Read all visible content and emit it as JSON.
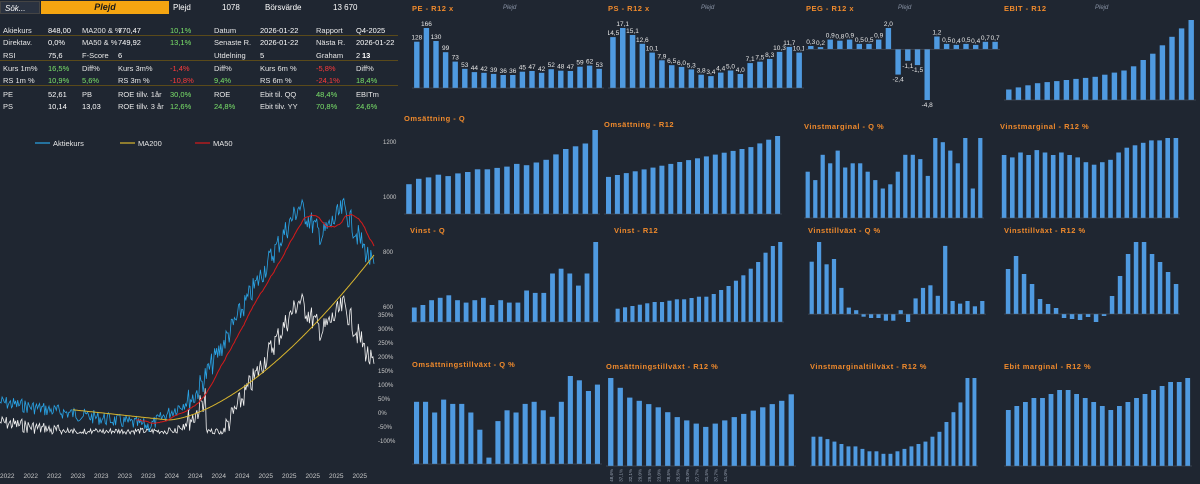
{
  "topbar": {
    "search": "Sök...",
    "company": "Plejd",
    "company2": "Plejd",
    "num1": "1078",
    "bv_label": "Börsvärde",
    "bv_value": "13 670"
  },
  "kpi": {
    "rows": [
      [
        {
          "t": "Akiekurs",
          "c": "lbl"
        },
        {
          "t": "848,00",
          "c": "val"
        },
        {
          "t": "MA200 & %",
          "c": "lbl"
        },
        {
          "t": "770,47",
          "c": "val"
        },
        {
          "t": "10,1%",
          "c": "pos"
        },
        {
          "t": "Datum",
          "c": "lbl"
        },
        {
          "t": "2026-01-22",
          "c": "val"
        },
        {
          "t": "Rapport",
          "c": "lbl"
        },
        {
          "t": "Q4-2025",
          "c": "val"
        }
      ],
      [
        {
          "t": "Direktav.",
          "c": "lbl"
        },
        {
          "t": "0,0%",
          "c": "val"
        },
        {
          "t": "MA50 & %",
          "c": "lbl"
        },
        {
          "t": "749,92",
          "c": "val"
        },
        {
          "t": "13,1%",
          "c": "pos"
        },
        {
          "t": "Senaste R.",
          "c": "lbl"
        },
        {
          "t": "2026-01-22",
          "c": "val"
        },
        {
          "t": "Nästa R.",
          "c": "lbl"
        },
        {
          "t": "2026-01-22",
          "c": "val"
        }
      ],
      [
        {
          "t": "RSI",
          "c": "lbl"
        },
        {
          "t": "75,6",
          "c": "val"
        },
        {
          "t": "F-Score",
          "c": "lbl"
        },
        {
          "t": "6",
          "c": "val"
        },
        {
          "t": "",
          "c": "val"
        },
        {
          "t": "Utdelning",
          "c": "lbl"
        },
        {
          "t": "5",
          "c": "val"
        },
        {
          "t": "Graham",
          "c": "lbl"
        },
        {
          "t": "2",
          "c": "val"
        },
        {
          "t": "13",
          "c": "val"
        }
      ],
      [
        {
          "t": "Kurs 1m%",
          "c": "lbl"
        },
        {
          "t": "16,5%",
          "c": "pos"
        },
        {
          "t": "Diff%",
          "c": "lbl"
        },
        {
          "t": "Kurs 3m%",
          "c": "lbl"
        },
        {
          "t": "-1,4%",
          "c": "neg"
        },
        {
          "t": "Diff%",
          "c": "lbl"
        },
        {
          "t": "Kurs 6m %",
          "c": "lbl"
        },
        {
          "t": "-5,8%",
          "c": "neg"
        },
        {
          "t": "Diff%",
          "c": "lbl"
        }
      ],
      [
        {
          "t": "RS 1m %",
          "c": "lbl"
        },
        {
          "t": "10,9%",
          "c": "pos"
        },
        {
          "t": "5,6%",
          "c": "pos"
        },
        {
          "t": "RS 3m %",
          "c": "lbl"
        },
        {
          "t": "-10,8%",
          "c": "neg"
        },
        {
          "t": "9,4%",
          "c": "pos"
        },
        {
          "t": "RS 6m %",
          "c": "lbl"
        },
        {
          "t": "-24,1%",
          "c": "neg"
        },
        {
          "t": "18,4%",
          "c": "pos"
        }
      ],
      [
        {
          "t": "PE",
          "c": "lbl"
        },
        {
          "t": "52,61",
          "c": "val"
        },
        {
          "t": "PB",
          "c": "lbl"
        },
        {
          "t": "ROE tillv. 1år",
          "c": "lbl"
        },
        {
          "t": "30,0%",
          "c": "pos"
        },
        {
          "t": "ROE",
          "c": "lbl"
        },
        {
          "t": "Ebit til. QQ",
          "c": "lbl"
        },
        {
          "t": "48,4%",
          "c": "pos"
        },
        {
          "t": "EBITm",
          "c": "lbl"
        }
      ],
      [
        {
          "t": "PS",
          "c": "lbl"
        },
        {
          "t": "10,14",
          "c": "val"
        },
        {
          "t": "13,03",
          "c": "val"
        },
        {
          "t": "ROE tillv. 3 år",
          "c": "lbl"
        },
        {
          "t": "12,6%",
          "c": "pos"
        },
        {
          "t": "24,8%",
          "c": "pos"
        },
        {
          "t": "Ebit tilv. YY",
          "c": "lbl"
        },
        {
          "t": "70,8%",
          "c": "pos"
        },
        {
          "t": "24,6%",
          "c": "pos"
        }
      ]
    ]
  },
  "main": {
    "legend": [
      "Aktiekurs",
      "MA200",
      "MA50"
    ],
    "colors": {
      "price": "#2aa4e6",
      "ma200": "#d8b52e",
      "ma50": "#d71a1a",
      "rs": "#f2f2f2"
    },
    "yright_price": [
      "1200",
      "1000",
      "800",
      "600"
    ],
    "yright_pct": [
      "350%",
      "300%",
      "250%",
      "200%",
      "150%",
      "100%",
      "50%",
      "0%",
      "-50%",
      "-100%"
    ],
    "xlabels": [
      "2022",
      "2022",
      "2022",
      "2023",
      "2023",
      "2023",
      "2023",
      "2024",
      "2024",
      "2024",
      "2024",
      "2025",
      "2025",
      "2025",
      "2025",
      "2025"
    ]
  },
  "watermark": "Plejd",
  "chart_data": [
    {
      "id": "pe",
      "type": "bar",
      "title": "PE  -  R12 x",
      "values": [
        128,
        166,
        130,
        99,
        73,
        53,
        44,
        42,
        39,
        36,
        36,
        45,
        47,
        42,
        52,
        48,
        47,
        59,
        62,
        53
      ],
      "labels": [
        "128",
        "166",
        "130",
        "99",
        "73",
        "53",
        "44",
        "42",
        "39",
        "36",
        "36",
        "45",
        "47",
        "42",
        "52",
        "48",
        "47",
        "59",
        "62",
        "53"
      ],
      "watermark": true
    },
    {
      "id": "ps",
      "type": "bar",
      "title": "PS  -  R12 x",
      "values": [
        14.5,
        17.1,
        15.1,
        12.6,
        10.1,
        7.9,
        6.5,
        6.0,
        5.3,
        3.8,
        3.4,
        4.4,
        5.0,
        4.0,
        7.1,
        7.5,
        8.3,
        10.3,
        11.7,
        10.1
      ],
      "labels": [
        "14,5",
        "17,1",
        "15,1",
        "12,6",
        "10,1",
        "7,9",
        "6,5",
        "6,0",
        "5,3",
        "3,8",
        "3,4",
        "4,4",
        "5,0",
        "4,0",
        "7,1",
        "7,5",
        "8,3",
        "10,3",
        "11,7",
        "10,1"
      ],
      "watermark": true
    },
    {
      "id": "peg",
      "type": "bar",
      "title": "PEG  -  R12 x",
      "values": [
        0.3,
        0.2,
        0.9,
        0.8,
        0.9,
        0.5,
        0.5,
        0.9,
        2.0,
        -2.4,
        -1.1,
        -1.5,
        -4.8,
        1.2,
        0.5,
        0.4,
        0.5,
        0.4,
        0.7,
        0.7
      ],
      "labels": [
        "0,3",
        "0,2",
        "0,9",
        "0,8",
        "0,9",
        "0,5",
        "0,5",
        "0,9",
        "2,0",
        "-2,4",
        "-1,1",
        "-1,5",
        "-4,8",
        "1,2",
        "0,5",
        "0,4",
        "0,5",
        "0,4",
        "0,7",
        "0,7"
      ],
      "watermark": true
    },
    {
      "id": "ebit",
      "type": "bar",
      "title": "EBIT  -  R12",
      "values": [
        10,
        12,
        14,
        16,
        17,
        18,
        19,
        20,
        21,
        22,
        24,
        26,
        28,
        32,
        38,
        44,
        52,
        60,
        68,
        76
      ],
      "watermark": true
    },
    {
      "id": "oms_q",
      "type": "bar",
      "title": "Omsättning  -  Q",
      "values": [
        22,
        26,
        27,
        29,
        28,
        30,
        31,
        33,
        33,
        34,
        35,
        37,
        36,
        38,
        40,
        44,
        48,
        50,
        52,
        62
      ]
    },
    {
      "id": "oms_r12",
      "type": "bar",
      "title": "Omsättning  -  R12",
      "values": [
        20,
        21,
        22,
        23,
        24,
        25,
        26,
        27,
        28,
        29,
        30,
        31,
        32,
        33,
        34,
        35,
        36,
        38,
        40,
        42
      ]
    },
    {
      "id": "vm_q",
      "type": "bar",
      "title": "Vinstmarginal  -  Q %",
      "values": [
        22,
        18,
        30,
        26,
        32,
        24,
        26,
        26,
        22,
        18,
        14,
        16,
        22,
        30,
        30,
        28,
        20,
        38,
        36,
        32,
        26,
        38,
        14,
        38
      ]
    },
    {
      "id": "vm_r12",
      "type": "bar",
      "title": "Vinstmarginal  -  R12 %",
      "values": [
        26,
        25,
        27,
        26,
        28,
        27,
        26,
        27,
        26,
        25,
        23,
        22,
        23,
        24,
        27,
        29,
        30,
        31,
        32,
        32,
        33,
        33
      ]
    },
    {
      "id": "vinst_q",
      "type": "bar",
      "title": "Vinst  -  Q",
      "values": [
        6,
        7,
        9,
        10,
        11,
        9,
        8,
        9,
        10,
        7,
        9,
        8,
        8,
        13,
        12,
        12,
        20,
        22,
        20,
        15,
        20,
        33
      ]
    },
    {
      "id": "vinst_r12",
      "type": "bar",
      "title": "Vinst  -  R12",
      "values": [
        10,
        11,
        12,
        13,
        14,
        15,
        15,
        16,
        17,
        17,
        18,
        19,
        19,
        21,
        24,
        27,
        31,
        35,
        40,
        45,
        52,
        57,
        60
      ]
    },
    {
      "id": "vt_q",
      "type": "bar",
      "title": "Vinsttillväxt  -  Q %",
      "values": [
        40,
        55,
        38,
        42,
        20,
        5,
        3,
        -2,
        -3,
        -3,
        -5,
        -5,
        3,
        -6,
        12,
        20,
        22,
        14,
        52,
        10,
        8,
        10,
        6,
        10
      ]
    },
    {
      "id": "vt_r12",
      "type": "bar",
      "title": "Vinsttillväxt  -  R12 %",
      "values": [
        45,
        58,
        40,
        30,
        15,
        10,
        6,
        -4,
        -5,
        -6,
        -3,
        -8,
        -2,
        18,
        38,
        60,
        72,
        72,
        60,
        52,
        42,
        30
      ]
    },
    {
      "id": "omt_q",
      "type": "bar",
      "title": "Omsättningstillväxt  -  Q %",
      "values": [
        58,
        58,
        48,
        60,
        56,
        56,
        48,
        32,
        6,
        40,
        50,
        48,
        56,
        58,
        50,
        44,
        58,
        82,
        78,
        68,
        74
      ]
    },
    {
      "id": "omt_r12",
      "type": "bar",
      "title": "Omsättningstillväxt  -  R12 %",
      "values": [
        54,
        48,
        42,
        40,
        38,
        36,
        33,
        30,
        28,
        26,
        24,
        26,
        28,
        30,
        32,
        34,
        36,
        38,
        40,
        44
      ],
      "xlabels": [
        "48,6%",
        "37,1%",
        "32,1%",
        "29,0%",
        "29,5%",
        "23,0%",
        "28,5%",
        "29,5%",
        "25,0%",
        "27,7%",
        "31,5%",
        "37,7%",
        "41,0%"
      ]
    },
    {
      "id": "vmt_r12",
      "type": "bar",
      "title": "Vinstmarginaltillväxt  -  R12 %",
      "values": [
        12,
        12,
        11,
        10,
        9,
        8,
        8,
        7,
        6,
        6,
        5,
        5,
        6,
        7,
        8,
        9,
        10,
        12,
        14,
        18,
        22,
        26,
        36,
        36
      ]
    },
    {
      "id": "ebitm_r12",
      "type": "bar",
      "title": "Ebit marginal  -  R12  %",
      "values": [
        14,
        15,
        16,
        17,
        17,
        18,
        19,
        19,
        18,
        17,
        16,
        15,
        14,
        15,
        16,
        17,
        18,
        19,
        20,
        21,
        21,
        22
      ]
    }
  ]
}
